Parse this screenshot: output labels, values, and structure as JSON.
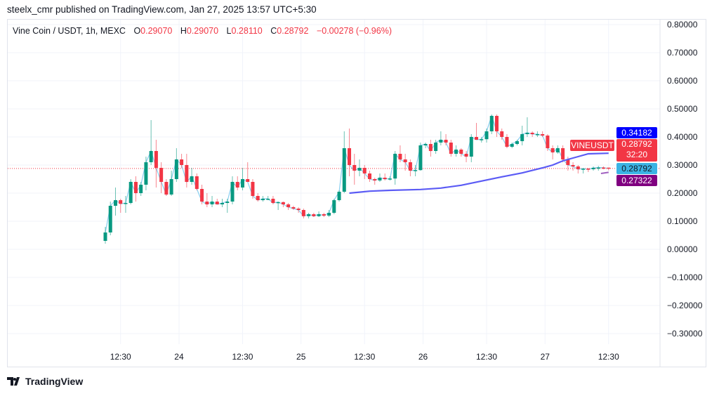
{
  "published": "steelx_cmr published on TradingView.com, Jan 27, 2025 13:57 UTC+5:30",
  "legend": {
    "symbol": "Vine Coin / USDT, 1h, MEXC",
    "o_label": "O",
    "o": "0.29070",
    "h_label": "H",
    "h": "0.29070",
    "l_label": "L",
    "l": "0.28110",
    "c_label": "C",
    "c": "0.28792",
    "change": "−0.00278 (−0.96%)"
  },
  "price_labels": {
    "ma": "0.34182",
    "last": "0.28792",
    "countdown": "32:20",
    "close2": "0.28792",
    "ma2": "0.27322",
    "symbol": "VINEUSDT"
  },
  "colors": {
    "up": "#089981",
    "down": "#f23645",
    "ma": "#5b5bf5",
    "close_line": "#89cff0",
    "ma_label": "#0000ff",
    "close2_label": "#3bb3e4",
    "ma2_label": "#800080"
  },
  "brand": "TradingView",
  "chart_data": {
    "type": "candlestick",
    "y_ticks": [
      "0.80000",
      "0.70000",
      "0.60000",
      "0.50000",
      "0.40000",
      "0.30000",
      "0.20000",
      "0.10000",
      "0.00000",
      "−0.10000",
      "−0.20000",
      "−0.30000"
    ],
    "ylim": [
      -0.33,
      0.83
    ],
    "x_ticks": [
      {
        "label": "12:30",
        "bar": 3
      },
      {
        "label": "24",
        "bar": 14.5
      },
      {
        "label": "12:30",
        "bar": 27
      },
      {
        "label": "25",
        "bar": 38.5
      },
      {
        "label": "12:30",
        "bar": 51
      },
      {
        "label": "26",
        "bar": 62.5
      },
      {
        "label": "12:30",
        "bar": 75
      },
      {
        "label": "27",
        "bar": 86.5
      },
      {
        "label": "12:30",
        "bar": 99
      }
    ],
    "last_price": 0.28792,
    "candles_ohlc": [
      [
        0.03,
        0.08,
        0.02,
        0.06
      ],
      [
        0.06,
        0.17,
        0.05,
        0.155
      ],
      [
        0.155,
        0.22,
        0.12,
        0.175
      ],
      [
        0.175,
        0.18,
        0.13,
        0.162
      ],
      [
        0.162,
        0.19,
        0.13,
        0.165
      ],
      [
        0.165,
        0.25,
        0.16,
        0.24
      ],
      [
        0.24,
        0.26,
        0.17,
        0.2
      ],
      [
        0.2,
        0.24,
        0.19,
        0.23
      ],
      [
        0.23,
        0.33,
        0.21,
        0.31
      ],
      [
        0.31,
        0.46,
        0.3,
        0.35
      ],
      [
        0.35,
        0.39,
        0.22,
        0.29
      ],
      [
        0.29,
        0.31,
        0.2,
        0.24
      ],
      [
        0.24,
        0.25,
        0.19,
        0.195
      ],
      [
        0.195,
        0.28,
        0.19,
        0.25
      ],
      [
        0.25,
        0.36,
        0.24,
        0.32
      ],
      [
        0.32,
        0.34,
        0.29,
        0.3
      ],
      [
        0.3,
        0.34,
        0.22,
        0.24
      ],
      [
        0.24,
        0.29,
        0.23,
        0.26
      ],
      [
        0.26,
        0.27,
        0.21,
        0.215
      ],
      [
        0.215,
        0.23,
        0.16,
        0.17
      ],
      [
        0.17,
        0.2,
        0.15,
        0.16
      ],
      [
        0.16,
        0.19,
        0.15,
        0.17
      ],
      [
        0.17,
        0.18,
        0.16,
        0.16
      ],
      [
        0.16,
        0.18,
        0.15,
        0.165
      ],
      [
        0.165,
        0.18,
        0.13,
        0.17
      ],
      [
        0.17,
        0.26,
        0.16,
        0.24
      ],
      [
        0.24,
        0.26,
        0.21,
        0.22
      ],
      [
        0.22,
        0.29,
        0.21,
        0.25
      ],
      [
        0.25,
        0.31,
        0.24,
        0.24
      ],
      [
        0.24,
        0.25,
        0.18,
        0.19
      ],
      [
        0.19,
        0.2,
        0.17,
        0.175
      ],
      [
        0.175,
        0.19,
        0.17,
        0.18
      ],
      [
        0.18,
        0.19,
        0.175,
        0.18
      ],
      [
        0.18,
        0.19,
        0.16,
        0.165
      ],
      [
        0.165,
        0.17,
        0.14,
        0.168
      ],
      [
        0.168,
        0.17,
        0.15,
        0.16
      ],
      [
        0.16,
        0.165,
        0.14,
        0.15
      ],
      [
        0.15,
        0.155,
        0.14,
        0.145
      ],
      [
        0.145,
        0.15,
        0.13,
        0.14
      ],
      [
        0.14,
        0.145,
        0.11,
        0.118
      ],
      [
        0.118,
        0.13,
        0.11,
        0.125
      ],
      [
        0.125,
        0.13,
        0.115,
        0.118
      ],
      [
        0.118,
        0.135,
        0.115,
        0.125
      ],
      [
        0.125,
        0.13,
        0.115,
        0.12
      ],
      [
        0.12,
        0.14,
        0.115,
        0.13
      ],
      [
        0.13,
        0.18,
        0.125,
        0.175
      ],
      [
        0.175,
        0.21,
        0.17,
        0.205
      ],
      [
        0.205,
        0.42,
        0.2,
        0.36
      ],
      [
        0.36,
        0.43,
        0.26,
        0.3
      ],
      [
        0.3,
        0.34,
        0.23,
        0.28
      ],
      [
        0.28,
        0.32,
        0.26,
        0.29
      ],
      [
        0.29,
        0.3,
        0.25,
        0.27
      ],
      [
        0.27,
        0.28,
        0.24,
        0.25
      ],
      [
        0.25,
        0.255,
        0.23,
        0.245
      ],
      [
        0.245,
        0.27,
        0.24,
        0.255
      ],
      [
        0.255,
        0.27,
        0.245,
        0.25
      ],
      [
        0.25,
        0.26,
        0.245,
        0.252
      ],
      [
        0.252,
        0.35,
        0.23,
        0.34
      ],
      [
        0.34,
        0.37,
        0.31,
        0.32
      ],
      [
        0.32,
        0.34,
        0.28,
        0.31
      ],
      [
        0.31,
        0.32,
        0.26,
        0.28
      ],
      [
        0.28,
        0.3,
        0.26,
        0.282
      ],
      [
        0.282,
        0.38,
        0.28,
        0.37
      ],
      [
        0.37,
        0.38,
        0.36,
        0.375
      ],
      [
        0.375,
        0.39,
        0.33,
        0.35
      ],
      [
        0.35,
        0.39,
        0.34,
        0.38
      ],
      [
        0.38,
        0.42,
        0.37,
        0.39
      ],
      [
        0.39,
        0.41,
        0.37,
        0.38
      ],
      [
        0.38,
        0.39,
        0.33,
        0.34
      ],
      [
        0.34,
        0.37,
        0.33,
        0.355
      ],
      [
        0.355,
        0.36,
        0.33,
        0.34
      ],
      [
        0.34,
        0.35,
        0.31,
        0.33
      ],
      [
        0.33,
        0.41,
        0.31,
        0.4
      ],
      [
        0.4,
        0.45,
        0.39,
        0.39
      ],
      [
        0.39,
        0.4,
        0.38,
        0.392
      ],
      [
        0.392,
        0.43,
        0.38,
        0.42
      ],
      [
        0.42,
        0.48,
        0.41,
        0.475
      ],
      [
        0.475,
        0.48,
        0.4,
        0.42
      ],
      [
        0.42,
        0.43,
        0.39,
        0.4
      ],
      [
        0.4,
        0.41,
        0.36,
        0.365
      ],
      [
        0.365,
        0.38,
        0.36,
        0.375
      ],
      [
        0.375,
        0.39,
        0.37,
        0.385
      ],
      [
        0.385,
        0.44,
        0.37,
        0.41
      ],
      [
        0.41,
        0.47,
        0.4,
        0.415
      ],
      [
        0.415,
        0.42,
        0.4,
        0.41
      ],
      [
        0.41,
        0.42,
        0.4,
        0.41
      ],
      [
        0.41,
        0.42,
        0.4,
        0.405
      ],
      [
        0.405,
        0.41,
        0.35,
        0.36
      ],
      [
        0.36,
        0.37,
        0.32,
        0.345
      ],
      [
        0.345,
        0.37,
        0.34,
        0.36
      ],
      [
        0.36,
        0.37,
        0.31,
        0.32
      ],
      [
        0.32,
        0.33,
        0.28,
        0.3
      ],
      [
        0.3,
        0.31,
        0.28,
        0.295
      ],
      [
        0.295,
        0.3,
        0.27,
        0.285
      ],
      [
        0.285,
        0.29,
        0.27,
        0.287
      ],
      [
        0.287,
        0.29,
        0.275,
        0.285
      ],
      [
        0.285,
        0.295,
        0.28,
        0.29
      ],
      [
        0.29,
        0.297,
        0.28,
        0.291
      ],
      [
        0.291,
        0.295,
        0.285,
        0.2907
      ],
      [
        0.2907,
        0.2907,
        0.2811,
        0.28792
      ]
    ],
    "ma_line": [
      [
        48,
        0.2
      ],
      [
        52,
        0.207
      ],
      [
        56,
        0.21
      ],
      [
        62,
        0.213
      ],
      [
        66,
        0.218
      ],
      [
        70,
        0.228
      ],
      [
        74,
        0.243
      ],
      [
        78,
        0.258
      ],
      [
        82,
        0.272
      ],
      [
        86,
        0.29
      ],
      [
        88,
        0.3
      ],
      [
        90,
        0.315
      ],
      [
        93,
        0.33
      ],
      [
        95,
        0.34
      ],
      [
        99,
        0.342
      ]
    ],
    "ma2_line": [
      [
        97.5,
        0.27
      ],
      [
        99,
        0.274
      ]
    ]
  }
}
